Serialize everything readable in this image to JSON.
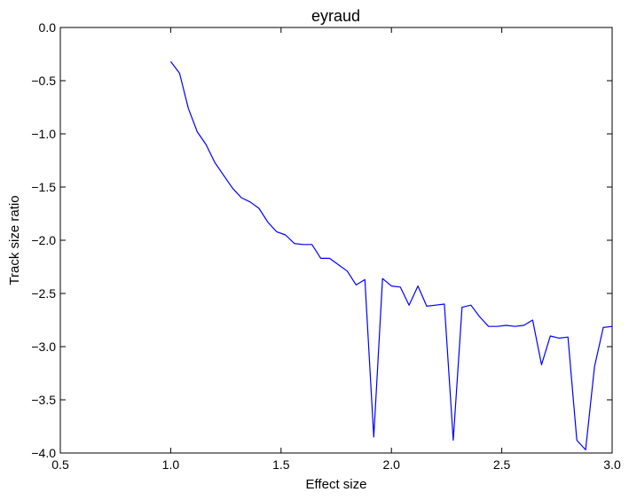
{
  "chart_data": {
    "type": "line",
    "title": "eyraud",
    "xlabel": "Effect size",
    "ylabel": "Track size ratio",
    "xlim": [
      0.5,
      3.0
    ],
    "ylim": [
      -4.0,
      0.0
    ],
    "xticks": [
      "0.5",
      "1.0",
      "1.5",
      "2.0",
      "2.5",
      "3.0"
    ],
    "yticks": [
      "0.0",
      "−0.5",
      "−1.0",
      "−1.5",
      "−2.0",
      "−2.5",
      "−3.0",
      "−3.5",
      "−4.0"
    ],
    "grid": false,
    "series": [
      {
        "color": "#0000ff",
        "x": [
          1.0,
          1.04,
          1.08,
          1.12,
          1.16,
          1.2,
          1.24,
          1.28,
          1.32,
          1.36,
          1.4,
          1.44,
          1.48,
          1.52,
          1.56,
          1.6,
          1.64,
          1.68,
          1.72,
          1.76,
          1.8,
          1.84,
          1.88,
          1.92,
          1.96,
          2.0,
          2.04,
          2.08,
          2.12,
          2.16,
          2.2,
          2.24,
          2.28,
          2.32,
          2.36,
          2.4,
          2.44,
          2.48,
          2.52,
          2.56,
          2.6,
          2.64,
          2.68,
          2.72,
          2.76,
          2.8,
          2.84,
          2.88,
          2.92,
          2.96,
          3.0
        ],
        "y": [
          -0.32,
          -0.43,
          -0.76,
          -0.98,
          -1.1,
          -1.27,
          -1.39,
          -1.51,
          -1.6,
          -1.64,
          -1.7,
          -1.83,
          -1.92,
          -1.95,
          -2.03,
          -2.04,
          -2.04,
          -2.17,
          -2.17,
          -2.23,
          -2.29,
          -2.42,
          -2.37,
          -3.85,
          -2.36,
          -2.43,
          -2.44,
          -2.61,
          -2.43,
          -2.62,
          -2.61,
          -2.6,
          -3.88,
          -2.63,
          -2.61,
          -2.72,
          -2.81,
          -2.81,
          -2.8,
          -2.81,
          -2.8,
          -2.75,
          -3.17,
          -2.9,
          -2.92,
          -2.91,
          -3.88,
          -3.97,
          -3.19,
          -2.82,
          -2.81
        ]
      }
    ]
  }
}
